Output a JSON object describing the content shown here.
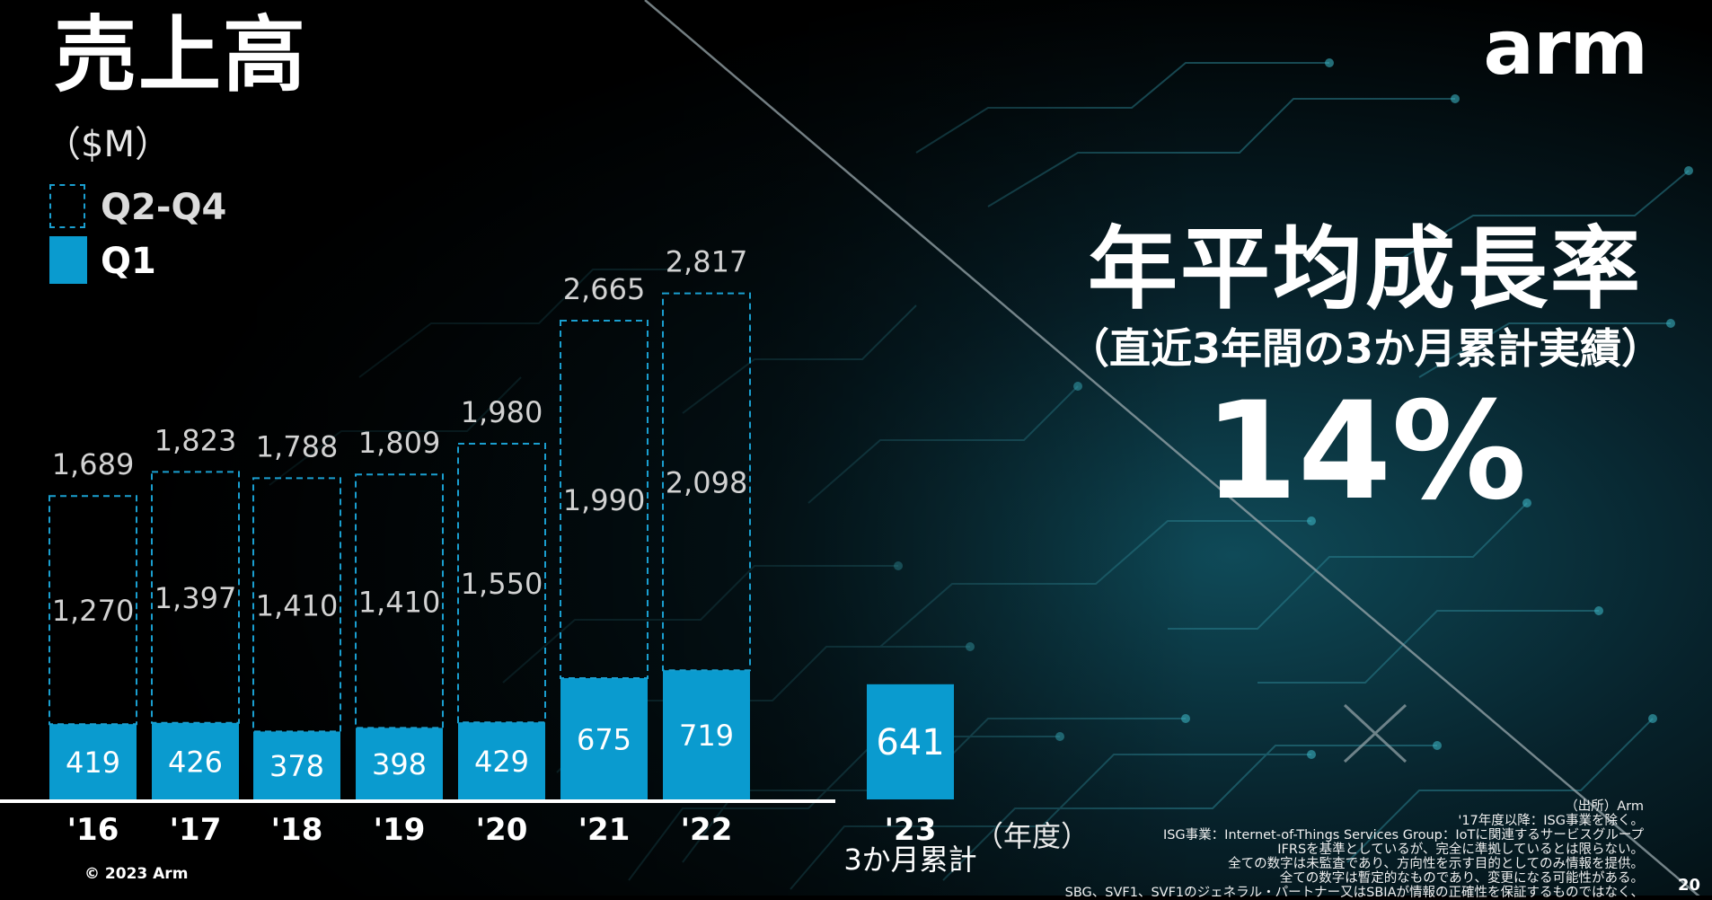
{
  "title": "売上高",
  "unit": "（$M）",
  "logo": "arm",
  "legend": {
    "q2_q4": "Q2-Q4",
    "q1": "Q1"
  },
  "cagr": {
    "title": "年平均成長率",
    "subtitle": "（直近3年間の3か月累計実績）",
    "value": "14%"
  },
  "fiscal_year_label": "（年度）",
  "copyright": "© 2023 Arm",
  "notes": [
    "（出所）Arm",
    "'17年度以降：ISG事業を除く。",
    "ISG事業：Internet-of-Things Services Group：IoTに関連するサービスグループ",
    "IFRSを基準としているが、完全に準拠しているとは限らない。",
    "全ての数字は未監査であり、方向性を示す目的としてのみ情報を提供。",
    "全ての数字は暫定的なものであり、変更になる可能性がある。",
    "SBG、SVF1、SVF1のジェネラル・パートナー又はSBIAが情報の正確性を保証するものではなく、"
  ],
  "slide_number": "20",
  "colors": {
    "q1": "#0a9bcf",
    "outline": "#1a9fd0",
    "background": "#000000"
  },
  "chart_data": {
    "type": "bar",
    "title": "売上高",
    "ylabel": "$M",
    "xlabel": "年度",
    "ylim": [
      0,
      2900
    ],
    "categories": [
      "'16",
      "'17",
      "'18",
      "'19",
      "'20",
      "'21",
      "'22",
      "'23"
    ],
    "category_sublabels": [
      "",
      "",
      "",
      "",
      "",
      "",
      "",
      "3か月累計"
    ],
    "series": [
      {
        "name": "Q1",
        "values": [
          419,
          426,
          378,
          398,
          429,
          675,
          719,
          641
        ]
      },
      {
        "name": "Q2-Q4",
        "values": [
          1270,
          1397,
          1410,
          1410,
          1550,
          1990,
          2098,
          null
        ]
      }
    ],
    "totals": [
      1689,
      1823,
      1788,
      1809,
      1980,
      2665,
      2817,
      null
    ],
    "labels": {
      "q1": [
        "419",
        "426",
        "378",
        "398",
        "429",
        "675",
        "719",
        "641"
      ],
      "q2_q4": [
        "1,270",
        "1,397",
        "1,410",
        "1,410",
        "1,550",
        "1,990",
        "2,098",
        ""
      ],
      "totals": [
        "1,689",
        "1,823",
        "1,788",
        "1,809",
        "1,980",
        "2,665",
        "2,817",
        ""
      ]
    }
  }
}
